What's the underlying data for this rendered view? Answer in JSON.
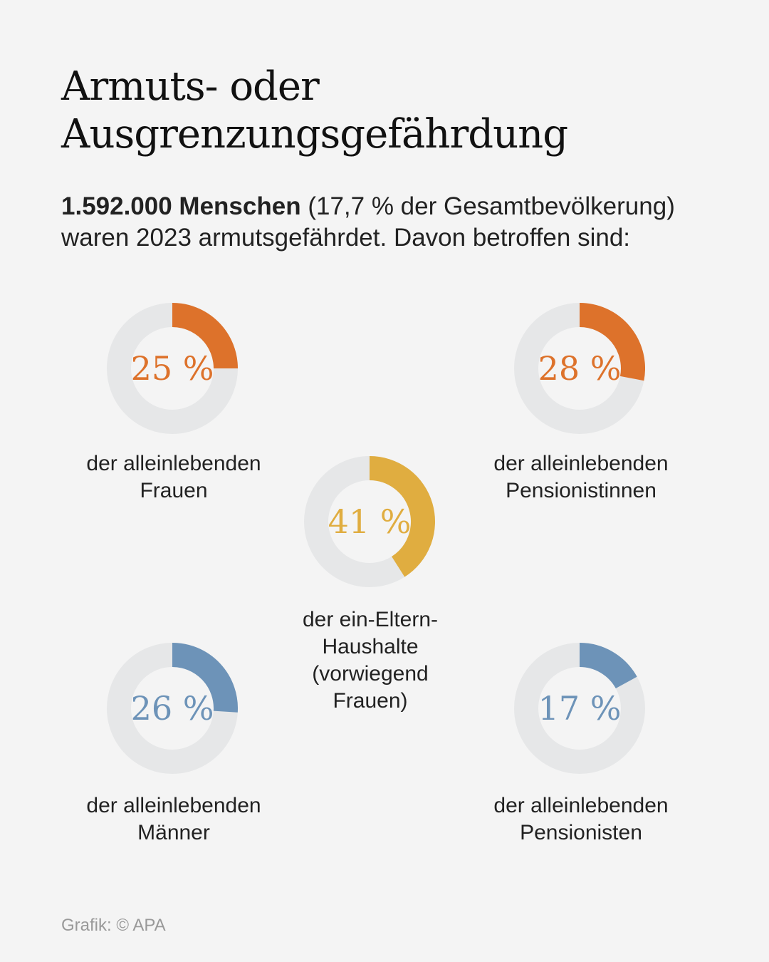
{
  "title_line1": "Armuts- oder",
  "title_line2": "Ausgrenzungsgefährdung",
  "intro": {
    "bold": "1.592.000 Menschen",
    "rest1": " (17,7 % der Gesamtbevölkerung)",
    "line2": "waren 2023 armutsgefährdet. Davon betroffen sind:"
  },
  "track_color": "#e6e7e8",
  "chart_data": {
    "type": "pie",
    "subtype": "donut-progress",
    "title": "Armuts- oder Ausgrenzungsgefährdung",
    "items": [
      {
        "value": 25,
        "display": "25 %",
        "label_line1": "der alleinlebenden",
        "label_line2": "Frauen",
        "color": "#dd722b"
      },
      {
        "value": 28,
        "display": "28 %",
        "label_line1": "der alleinlebenden",
        "label_line2": "Pensionistinnen",
        "color": "#dd722b"
      },
      {
        "value": 41,
        "display": "41 %",
        "label_line1": "der ein-Eltern-",
        "label_line2": "Haushalte",
        "label_line3": "(vorwiegend",
        "label_line4": "Frauen)",
        "color": "#e0ad40"
      },
      {
        "value": 26,
        "display": "26 %",
        "label_line1": "der alleinlebenden",
        "label_line2": "Männer",
        "color": "#6d93b8"
      },
      {
        "value": 17,
        "display": "17 %",
        "label_line1": "der alleinlebenden",
        "label_line2": "Pensionisten",
        "color": "#6d93b8"
      }
    ]
  },
  "credit": "Grafik: © APA"
}
